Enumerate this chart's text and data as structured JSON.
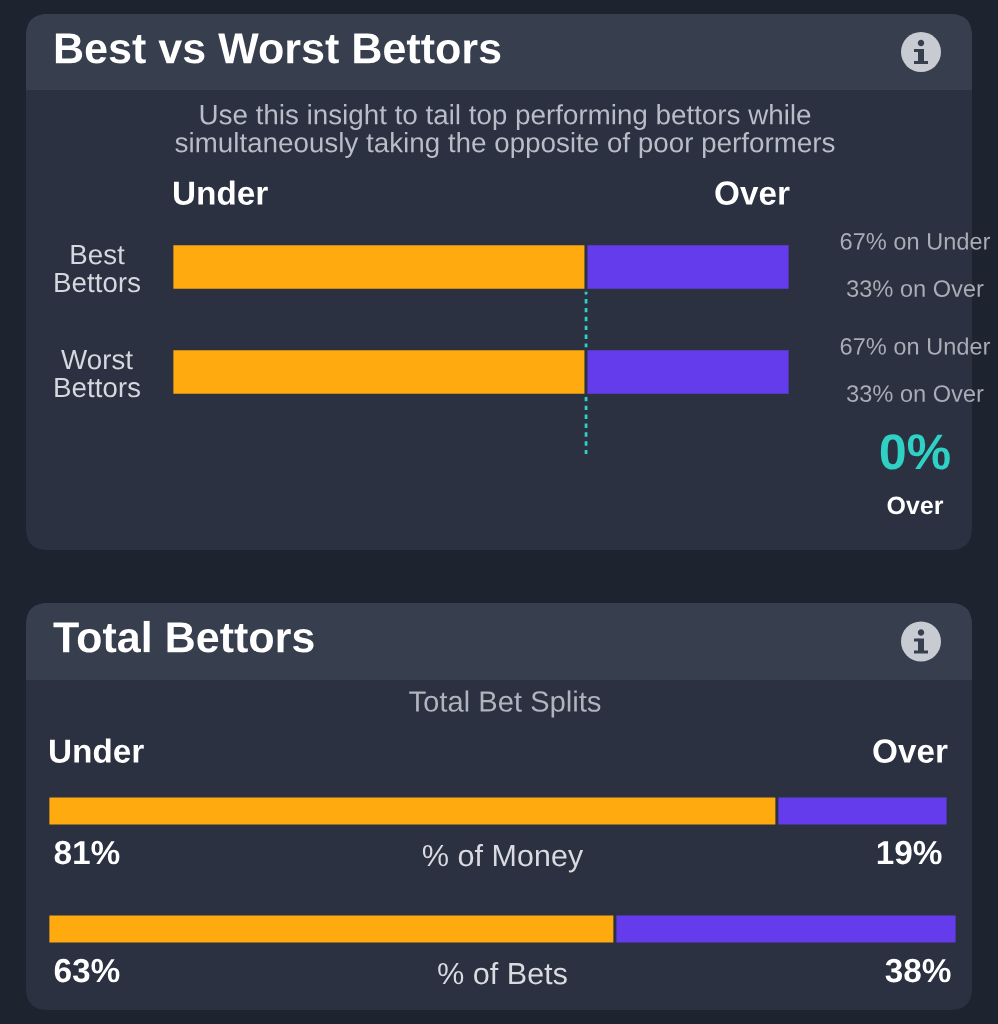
{
  "chart_data": [
    {
      "type": "bar",
      "orientation": "horizontal",
      "stacked": true,
      "title": "Best vs Worst Bettors",
      "subtitle": "Use this insight to tail top performing bettors while\nsimultaneously taking the opposite of poor performers",
      "categories": [
        "Best\nBettors",
        "Worst\nBettors",
        null
      ],
      "series": [
        {
          "name": "Under",
          "color": "#ffab0f",
          "values": [
            67,
            67,
            null
          ],
          "value_labels": [
            "67% on Under",
            "67% on Under",
            null
          ]
        },
        {
          "name": "Over",
          "color": "#643ceb",
          "values": [
            33,
            33,
            null
          ],
          "value_labels": [
            "33% on Over",
            "33% on Over",
            null
          ]
        }
      ],
      "xlim": [
        0,
        100
      ],
      "ref_lines": [
        {
          "axis": "x",
          "value": 67,
          "color": "#2ed1c3",
          "line_style": "dotted"
        }
      ],
      "annotations": [
        "0%\nOver"
      ],
      "tick_labels": "y"
    },
    {
      "type": "bar",
      "orientation": "horizontal",
      "stacked": true,
      "title": "Total Bettors",
      "subtitle": "Total Bet Splits",
      "categories": [
        "% of Money",
        "% of Bets"
      ],
      "series": [
        {
          "name": "Under",
          "color": "#ffab0f",
          "values": [
            81,
            63
          ],
          "value_labels": [
            "81%",
            "63%"
          ]
        },
        {
          "name": "Over",
          "color": "#643ceb",
          "values": [
            19,
            38
          ],
          "value_labels": [
            "19%",
            "38%"
          ]
        }
      ],
      "xlim": [
        0,
        101
      ],
      "tick_labels": "y"
    }
  ]
}
